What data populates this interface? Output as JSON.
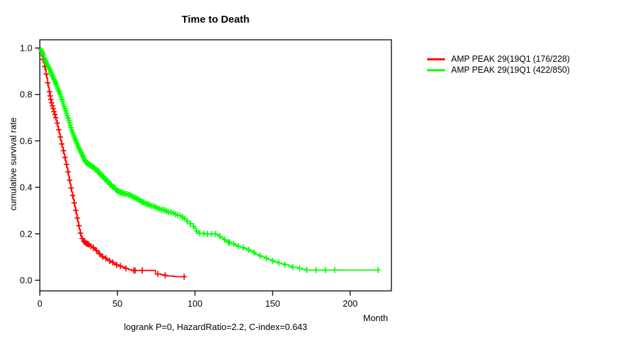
{
  "chart_data": {
    "type": "line",
    "subtype": "kaplan_meier_step",
    "title": "Time to Death",
    "xlabel": "Month",
    "ylabel": "cumulative survival rate",
    "annotation": "logrank P=0, HazardRatio=2.2, C-index=0.643",
    "grid": false,
    "legend_position": "top-right-outside",
    "x_axis": {
      "ticks": [
        0,
        50,
        100,
        150,
        200
      ],
      "range": [
        0,
        226
      ]
    },
    "y_axis": {
      "ticks": [
        "0.0",
        "0.2",
        "0.4",
        "0.6",
        "0.8",
        "1.0"
      ],
      "range": [
        0,
        1
      ]
    },
    "series": [
      {
        "name": "AMP PEAK 29(19Q1 (176/228)",
        "color": "#ff0000",
        "events": "176/228",
        "steps": [
          [
            0,
            1.0
          ],
          [
            0.5,
            0.99
          ],
          [
            1,
            0.978
          ],
          [
            1.5,
            0.965
          ],
          [
            2,
            0.951
          ],
          [
            2.5,
            0.936
          ],
          [
            3,
            0.921
          ],
          [
            3.5,
            0.906
          ],
          [
            4,
            0.888
          ],
          [
            4.5,
            0.869
          ],
          [
            5,
            0.85
          ],
          [
            5.5,
            0.831
          ],
          [
            6,
            0.812
          ],
          [
            6.5,
            0.794
          ],
          [
            7,
            0.778
          ],
          [
            7.5,
            0.764
          ],
          [
            8,
            0.751
          ],
          [
            8.5,
            0.739
          ],
          [
            9,
            0.726
          ],
          [
            9.5,
            0.713
          ],
          [
            10,
            0.7
          ],
          [
            10.5,
            0.689
          ],
          [
            11,
            0.677
          ],
          [
            11.5,
            0.663
          ],
          [
            12,
            0.648
          ],
          [
            12.5,
            0.632
          ],
          [
            13,
            0.617
          ],
          [
            13.5,
            0.601
          ],
          [
            14,
            0.587
          ],
          [
            14.5,
            0.572
          ],
          [
            15,
            0.558
          ],
          [
            15.5,
            0.544
          ],
          [
            16,
            0.529
          ],
          [
            16.5,
            0.514
          ],
          [
            17,
            0.499
          ],
          [
            17.5,
            0.484
          ],
          [
            18,
            0.467
          ],
          [
            18.5,
            0.449
          ],
          [
            19,
            0.431
          ],
          [
            19.5,
            0.414
          ],
          [
            20,
            0.397
          ],
          [
            20.5,
            0.381
          ],
          [
            21,
            0.365
          ],
          [
            21.5,
            0.349
          ],
          [
            22,
            0.333
          ],
          [
            22.5,
            0.317
          ],
          [
            23,
            0.301
          ],
          [
            23.5,
            0.285
          ],
          [
            24,
            0.268
          ],
          [
            24.5,
            0.251
          ],
          [
            25,
            0.235
          ],
          [
            25.5,
            0.219
          ],
          [
            26,
            0.203
          ],
          [
            26.5,
            0.19
          ],
          [
            27,
            0.18
          ],
          [
            27.5,
            0.172
          ],
          [
            28,
            0.166
          ],
          [
            29,
            0.161
          ],
          [
            30,
            0.157
          ],
          [
            31,
            0.153
          ],
          [
            32,
            0.15
          ],
          [
            33,
            0.146
          ],
          [
            34,
            0.141
          ],
          [
            35,
            0.135
          ],
          [
            36,
            0.128
          ],
          [
            37,
            0.121
          ],
          [
            38,
            0.114
          ],
          [
            39,
            0.108
          ],
          [
            40,
            0.101
          ],
          [
            41.5,
            0.095
          ],
          [
            43,
            0.089
          ],
          [
            44.5,
            0.083
          ],
          [
            46,
            0.077
          ],
          [
            47.5,
            0.071
          ],
          [
            49,
            0.066
          ],
          [
            51,
            0.061
          ],
          [
            53,
            0.056
          ],
          [
            55,
            0.051
          ],
          [
            57,
            0.046
          ],
          [
            59,
            0.042
          ],
          [
            74.5,
            0.027
          ],
          [
            78,
            0.024
          ],
          [
            80.5,
            0.021
          ],
          [
            82,
            0.018
          ],
          [
            86,
            0.016
          ],
          [
            88,
            0.015
          ],
          [
            93,
            0.015
          ]
        ],
        "censor_months": [
          1.1,
          2.1,
          3.2,
          4.1,
          5.1,
          6.2,
          6.7,
          7.1,
          7.6,
          8.1,
          8.6,
          9.1,
          9.7,
          10.3,
          11.2,
          12.2,
          13.2,
          14.2,
          15.2,
          16.2,
          17.2,
          18.2,
          19.2,
          20.2,
          21.2,
          22.2,
          23.2,
          24.2,
          25.2,
          26.2,
          27.3,
          28.4,
          28.9,
          29.6,
          30.3,
          30.9,
          31.6,
          33,
          34.5,
          36.5,
          38.5,
          40.5,
          42.5,
          45,
          47,
          49.5,
          52,
          55.5,
          60.5,
          61.4,
          66,
          76,
          80.8,
          93
        ]
      },
      {
        "name": "AMP PEAK 29(19Q1 (422/850)",
        "color": "#00ff00",
        "events": "422/850",
        "steps": [
          [
            0,
            1.0
          ],
          [
            0.5,
            0.993
          ],
          [
            1,
            0.986
          ],
          [
            1.5,
            0.979
          ],
          [
            2,
            0.971
          ],
          [
            2.5,
            0.963
          ],
          [
            3,
            0.956
          ],
          [
            3.5,
            0.948
          ],
          [
            4,
            0.941
          ],
          [
            4.5,
            0.933
          ],
          [
            5,
            0.926
          ],
          [
            5.5,
            0.918
          ],
          [
            6,
            0.911
          ],
          [
            6.5,
            0.903
          ],
          [
            7,
            0.895
          ],
          [
            7.5,
            0.887
          ],
          [
            8,
            0.879
          ],
          [
            8.5,
            0.871
          ],
          [
            9,
            0.864
          ],
          [
            9.5,
            0.857
          ],
          [
            10,
            0.85
          ],
          [
            10.5,
            0.842
          ],
          [
            11,
            0.833
          ],
          [
            11.5,
            0.824
          ],
          [
            12,
            0.815
          ],
          [
            12.5,
            0.807
          ],
          [
            13,
            0.799
          ],
          [
            13.5,
            0.789
          ],
          [
            14,
            0.779
          ],
          [
            14.5,
            0.769
          ],
          [
            15,
            0.759
          ],
          [
            15.5,
            0.749
          ],
          [
            16,
            0.739
          ],
          [
            16.5,
            0.729
          ],
          [
            17,
            0.719
          ],
          [
            17.5,
            0.709
          ],
          [
            18,
            0.698
          ],
          [
            18.5,
            0.688
          ],
          [
            19,
            0.678
          ],
          [
            19.5,
            0.668
          ],
          [
            20,
            0.658
          ],
          [
            20.5,
            0.648
          ],
          [
            21,
            0.639
          ],
          [
            21.5,
            0.63
          ],
          [
            22,
            0.621
          ],
          [
            22.5,
            0.612
          ],
          [
            23,
            0.604
          ],
          [
            23.5,
            0.596
          ],
          [
            24,
            0.588
          ],
          [
            24.5,
            0.58
          ],
          [
            25,
            0.572
          ],
          [
            25.5,
            0.565
          ],
          [
            26,
            0.558
          ],
          [
            26.5,
            0.551
          ],
          [
            27,
            0.544
          ],
          [
            27.5,
            0.537
          ],
          [
            28,
            0.53
          ],
          [
            28.5,
            0.523
          ],
          [
            29,
            0.516
          ],
          [
            29.5,
            0.51
          ],
          [
            30,
            0.505
          ],
          [
            31,
            0.5
          ],
          [
            32,
            0.496
          ],
          [
            33,
            0.491
          ],
          [
            34,
            0.486
          ],
          [
            35,
            0.481
          ],
          [
            36,
            0.476
          ],
          [
            37,
            0.469
          ],
          [
            38,
            0.462
          ],
          [
            39,
            0.455
          ],
          [
            40,
            0.448
          ],
          [
            41,
            0.441
          ],
          [
            42,
            0.434
          ],
          [
            43,
            0.427
          ],
          [
            44,
            0.42
          ],
          [
            45,
            0.413
          ],
          [
            46,
            0.407
          ],
          [
            47,
            0.401
          ],
          [
            48,
            0.395
          ],
          [
            49,
            0.389
          ],
          [
            50,
            0.384
          ],
          [
            51.5,
            0.379
          ],
          [
            53,
            0.375
          ],
          [
            55,
            0.372
          ],
          [
            57,
            0.368
          ],
          [
            58.5,
            0.363
          ],
          [
            60,
            0.358
          ],
          [
            61.5,
            0.353
          ],
          [
            63,
            0.347
          ],
          [
            64.5,
            0.341
          ],
          [
            66,
            0.336
          ],
          [
            67.5,
            0.331
          ],
          [
            69,
            0.327
          ],
          [
            70.5,
            0.323
          ],
          [
            72,
            0.319
          ],
          [
            73.5,
            0.315
          ],
          [
            75,
            0.311
          ],
          [
            76.5,
            0.307
          ],
          [
            78,
            0.304
          ],
          [
            79.5,
            0.301
          ],
          [
            81,
            0.297
          ],
          [
            83,
            0.293
          ],
          [
            85,
            0.289
          ],
          [
            87,
            0.284
          ],
          [
            89,
            0.279
          ],
          [
            91,
            0.272
          ],
          [
            93,
            0.264
          ],
          [
            95,
            0.254
          ],
          [
            97,
            0.243
          ],
          [
            99,
            0.232
          ],
          [
            100,
            0.222
          ],
          [
            101,
            0.212
          ],
          [
            102,
            0.202
          ],
          [
            106,
            0.199
          ],
          [
            114,
            0.196
          ],
          [
            115.5,
            0.189
          ],
          [
            117,
            0.182
          ],
          [
            118.5,
            0.175
          ],
          [
            120,
            0.169
          ],
          [
            121.5,
            0.163
          ],
          [
            123.5,
            0.157
          ],
          [
            125.5,
            0.151
          ],
          [
            127.5,
            0.146
          ],
          [
            129.5,
            0.141
          ],
          [
            131.5,
            0.137
          ],
          [
            133.5,
            0.131
          ],
          [
            135.5,
            0.126
          ],
          [
            137.5,
            0.119
          ],
          [
            139,
            0.111
          ],
          [
            141,
            0.105
          ],
          [
            143,
            0.1
          ],
          [
            145,
            0.095
          ],
          [
            147,
            0.09
          ],
          [
            149,
            0.084
          ],
          [
            151,
            0.079
          ],
          [
            153,
            0.075
          ],
          [
            155.5,
            0.071
          ],
          [
            158,
            0.066
          ],
          [
            160.5,
            0.061
          ],
          [
            163,
            0.056
          ],
          [
            166,
            0.051
          ],
          [
            169,
            0.047
          ],
          [
            172,
            0.044
          ],
          [
            218,
            0.044
          ]
        ],
        "censor_months": [
          0.6,
          1.2,
          1.8,
          2.4,
          3,
          3.5,
          4,
          4.5,
          5,
          5.5,
          6,
          6.4,
          6.8,
          7.2,
          7.6,
          8,
          8.4,
          8.8,
          9.2,
          9.6,
          10,
          10.4,
          10.8,
          11.2,
          11.6,
          12,
          12.4,
          12.8,
          13.2,
          13.6,
          14,
          14.4,
          14.8,
          15.2,
          15.6,
          16,
          16.4,
          16.8,
          17.2,
          17.6,
          18,
          18.4,
          18.8,
          19.2,
          19.6,
          20,
          20.5,
          21,
          21.5,
          22,
          22.5,
          23,
          23.5,
          24,
          24.5,
          25,
          25.5,
          26,
          26.5,
          27,
          27.5,
          28,
          28.5,
          29,
          29.5,
          30,
          30.6,
          31.2,
          31.8,
          32.4,
          33,
          33.6,
          34.2,
          34.8,
          35.4,
          36,
          36.6,
          37.2,
          37.8,
          38.4,
          39,
          39.6,
          40.2,
          40.8,
          41.4,
          42,
          42.6,
          43.2,
          43.8,
          44.4,
          45,
          45.7,
          46.4,
          47.1,
          47.8,
          48.5,
          49.2,
          50,
          50.8,
          51.6,
          52.4,
          53.2,
          54,
          55,
          56,
          57,
          58,
          59,
          60,
          61,
          62,
          63,
          64,
          65,
          66,
          67,
          68,
          69,
          70,
          71,
          72.2,
          73.4,
          74.6,
          75.8,
          77,
          78.2,
          79.4,
          80.6,
          81.8,
          83,
          84.5,
          86,
          87.5,
          89,
          90.5,
          92,
          93.5,
          95,
          97,
          99,
          101,
          103,
          105.5,
          108,
          110.5,
          113,
          116,
          119,
          121.5,
          122.3,
          125,
          128,
          131,
          134.5,
          138,
          142,
          146,
          150,
          154,
          158,
          163,
          167.5,
          172,
          178,
          184,
          190,
          218
        ]
      }
    ]
  }
}
